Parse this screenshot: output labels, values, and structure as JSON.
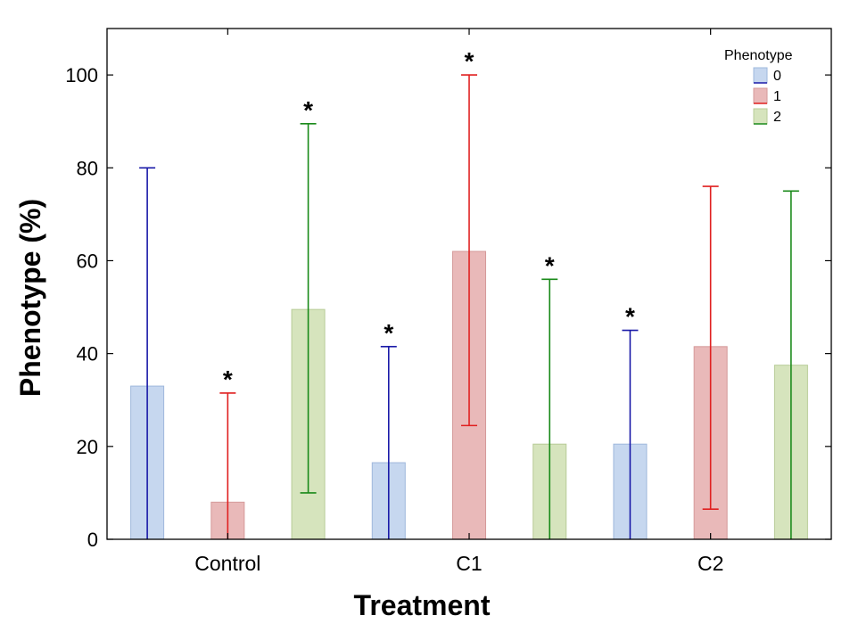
{
  "chart_data": {
    "type": "bar",
    "xlabel": "Treatment",
    "ylabel": "Phenotype (%)",
    "ylim": [
      0,
      110
    ],
    "yticks": [
      0,
      20,
      40,
      60,
      80,
      100
    ],
    "categories": [
      "Control",
      "C1",
      "C2"
    ],
    "legend": {
      "title": "Phenotype",
      "placement": "top-right"
    },
    "series": [
      {
        "name": "0",
        "color": "#c6d7ef",
        "edge": "#9fb8dc",
        "whisker": "#1a1aa8",
        "values": [
          33,
          16.5,
          20.5
        ],
        "upper": [
          80,
          41.5,
          45
        ],
        "lower": [
          0,
          0,
          0
        ],
        "significant": [
          false,
          true,
          true
        ]
      },
      {
        "name": "1",
        "color": "#e9b9b9",
        "edge": "#d59a9a",
        "whisker": "#e02020",
        "values": [
          8,
          62,
          41.5
        ],
        "upper": [
          31.5,
          100,
          76
        ],
        "lower": [
          0,
          24.5,
          6.5
        ],
        "significant": [
          true,
          true,
          false
        ]
      },
      {
        "name": "2",
        "color": "#d6e4bd",
        "edge": "#b8cc98",
        "whisker": "#1a8a1a",
        "values": [
          49.5,
          20.5,
          37.5
        ],
        "upper": [
          89.5,
          56,
          75
        ],
        "lower": [
          10,
          0,
          0
        ],
        "significant": [
          true,
          true,
          false
        ]
      }
    ],
    "significance_marker": "*",
    "grid": false
  }
}
